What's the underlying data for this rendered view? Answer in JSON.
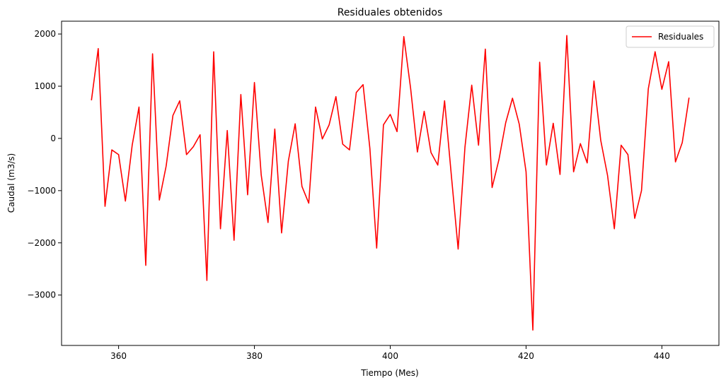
{
  "chart_data": {
    "type": "line",
    "title": "Residuales obtenidos",
    "xlabel": "Tiempo (Mes)",
    "ylabel": "Caudal (m3/s)",
    "xlim": [
      351.6,
      448.4
    ],
    "ylim": [
      -3965,
      2245
    ],
    "xticks": [
      360,
      380,
      400,
      420,
      440
    ],
    "xtick_labels": [
      "360",
      "380",
      "400",
      "420",
      "440"
    ],
    "yticks": [
      -3000,
      -2000,
      -1000,
      0,
      1000,
      2000
    ],
    "ytick_labels": [
      "−3000",
      "−2000",
      "−1000",
      "0",
      "1000",
      "2000"
    ],
    "grid": false,
    "legend": "top-right",
    "series": [
      {
        "name": "Residuales",
        "color": "#ff0000",
        "x": [
          356,
          357,
          358,
          359,
          360,
          361,
          362,
          363,
          364,
          365,
          366,
          367,
          368,
          369,
          370,
          371,
          372,
          373,
          374,
          375,
          376,
          377,
          378,
          379,
          380,
          381,
          382,
          383,
          384,
          385,
          386,
          387,
          388,
          389,
          390,
          391,
          392,
          393,
          394,
          395,
          396,
          397,
          398,
          399,
          400,
          401,
          402,
          403,
          404,
          405,
          406,
          407,
          408,
          409,
          410,
          411,
          412,
          413,
          414,
          415,
          416,
          417,
          418,
          419,
          420,
          421,
          422,
          423,
          424,
          425,
          426,
          427,
          428,
          429,
          430,
          431,
          432,
          433,
          434,
          435,
          436,
          437,
          438,
          439,
          440,
          441,
          442,
          443,
          444
        ],
        "y": [
          730,
          1720,
          -1300,
          -220,
          -310,
          -1200,
          -130,
          600,
          -2430,
          1620,
          -1180,
          -530,
          440,
          720,
          -310,
          -160,
          70,
          -2720,
          1660,
          -1730,
          150,
          -1950,
          840,
          -1080,
          1070,
          -700,
          -1610,
          180,
          -1810,
          -430,
          280,
          -920,
          -1240,
          600,
          -10,
          260,
          800,
          -110,
          -220,
          880,
          1030,
          -190,
          -2100,
          260,
          460,
          130,
          1950,
          960,
          -260,
          520,
          -270,
          -510,
          720,
          -710,
          -2120,
          -170,
          1020,
          -130,
          1710,
          -940,
          -410,
          300,
          770,
          270,
          -640,
          -3670,
          1460,
          -510,
          290,
          -690,
          1970,
          -640,
          -100,
          -470,
          1100,
          -40,
          -710,
          -1730,
          -130,
          -310,
          -1530,
          -1000,
          950,
          1660,
          940,
          1470,
          -450,
          -80,
          780
        ]
      }
    ]
  }
}
